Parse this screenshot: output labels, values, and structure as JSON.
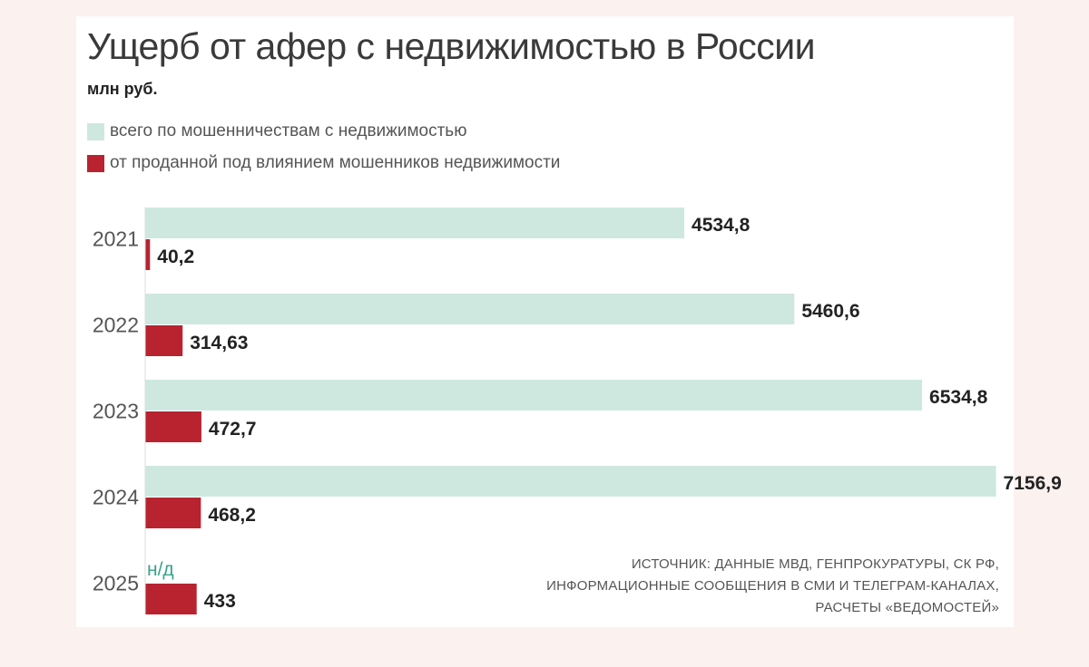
{
  "legend": [
    {
      "label": "всего по мошенничествам с недвижимостью",
      "color": "#cfe8df"
    },
    {
      "label": "от проданной под влиянием мошенников недвижимости",
      "color": "#b8232f"
    }
  ],
  "source": [
    "ИСТОЧНИК: ДАННЫЕ МВД, ГЕНПРОКУРАТУРЫ, СК РФ,",
    "ИНФОРМАЦИОННЫЕ СООБЩЕНИЯ В СМИ И ТЕЛЕГРАМ-КАНАЛАХ,",
    "РАСЧЕТЫ «ВЕДОМОСТЕЙ»"
  ],
  "chart_data": {
    "type": "bar",
    "orientation": "horizontal",
    "title": "Ущерб от афер с недвижимостью в России",
    "unit": "млн руб.",
    "categories": [
      "2021",
      "2022",
      "2023",
      "2024",
      "2025"
    ],
    "series": [
      {
        "name": "всего по мошенничествам с недвижимостью",
        "values": [
          4534.8,
          5460.6,
          6534.8,
          7156.9,
          null
        ],
        "labels": [
          "4534,8",
          "5460,6",
          "6534,8",
          "7156,9",
          "н/д"
        ],
        "color": "#cfe8df"
      },
      {
        "name": "от проданной под влиянием мошенников недвижимости",
        "values": [
          40.2,
          314.63,
          472.7,
          468.2,
          433
        ],
        "labels": [
          "40,2",
          "314,63",
          "472,7",
          "468,2",
          "433"
        ],
        "color": "#b8232f"
      }
    ],
    "grid": false,
    "legend_position": "top-left"
  }
}
